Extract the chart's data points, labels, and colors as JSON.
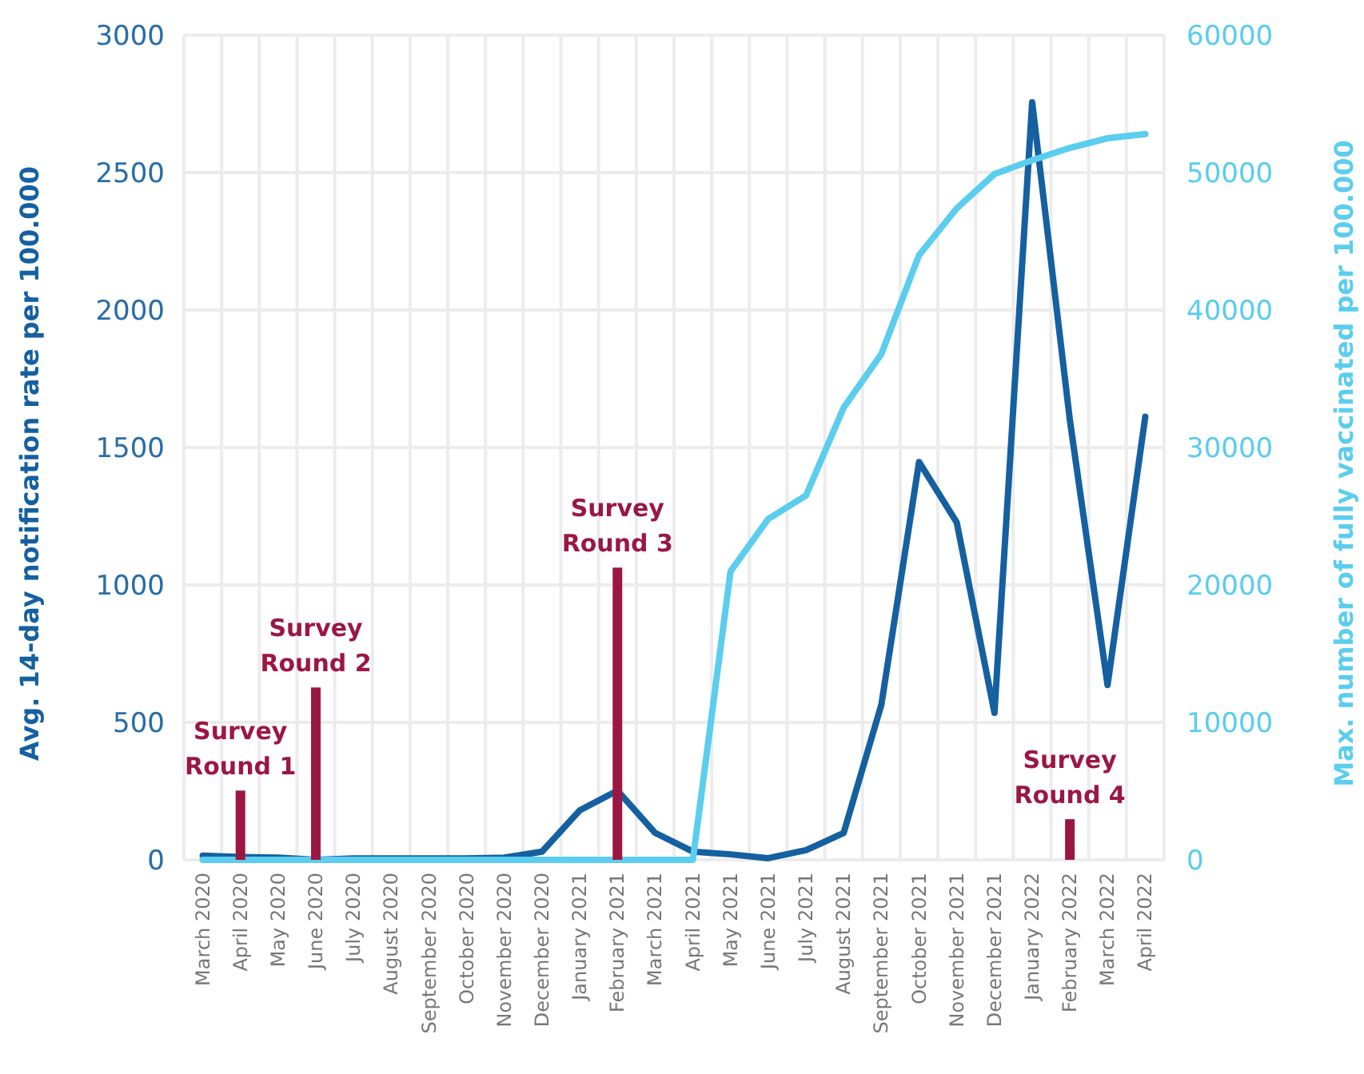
{
  "chart_data": {
    "type": "line",
    "ylabel": "Avg. 14-day notification rate per 100.000",
    "y2label": "Max. number of fully vaccinated per 100.000",
    "categories": [
      "March 2020",
      "April 2020",
      "May 2020",
      "June 2020",
      "July 2020",
      "August 2020",
      "September 2020",
      "October 2020",
      "November 2020",
      "December 2020",
      "January 2021",
      "February 2021",
      "March 2021",
      "April 2021",
      "May 2021",
      "June 2021",
      "July 2021",
      "August 2021",
      "September 2021",
      "October 2021",
      "November 2021",
      "December 2021",
      "January 2022",
      "February 2022",
      "March 2022",
      "April 2022"
    ],
    "series": [
      {
        "color": "#1560a0",
        "values": [
          15,
          10,
          8,
          0,
          5,
          5,
          5,
          5,
          8,
          30,
          180,
          252,
          98,
          30,
          20,
          6,
          35,
          98,
          564,
          1447,
          1227,
          535,
          2756,
          1600,
          636,
          1612
        ]
      },
      {
        "type": "line",
        "axis": "y2",
        "color": "#5bcdee",
        "values": [
          0,
          0,
          0,
          0,
          0,
          0,
          0,
          0,
          0,
          0,
          0,
          0,
          0,
          0,
          21000,
          24800,
          26500,
          32900,
          36800,
          44000,
          47400,
          49900,
          50900,
          51800,
          52500,
          52800
        ]
      },
      {
        "type": "bar",
        "color": "#9b1743",
        "values": [
          null,
          252,
          null,
          627,
          null,
          null,
          null,
          null,
          null,
          null,
          null,
          1063,
          null,
          null,
          null,
          null,
          null,
          null,
          null,
          null,
          null,
          null,
          null,
          148,
          null,
          null
        ]
      }
    ],
    "ylim": [
      0,
      3000
    ],
    "yticks": [
      0,
      500,
      1000,
      1500,
      2000,
      2500,
      3000
    ],
    "y2lim": [
      0,
      60000
    ],
    "y2ticks": [
      0,
      10000,
      20000,
      30000,
      40000,
      50000,
      60000
    ],
    "grid": true,
    "annotations": [
      {
        "text": "Survey Round 1",
        "x": "April 2020",
        "y": 252
      },
      {
        "text": "Survey Round 2",
        "x": "June 2020",
        "y": 627
      },
      {
        "text": "Survey Round 3",
        "x": "February 2021",
        "y": 1063
      },
      {
        "text": "Survey Round 4",
        "x": "February 2022",
        "y": 148
      }
    ]
  }
}
